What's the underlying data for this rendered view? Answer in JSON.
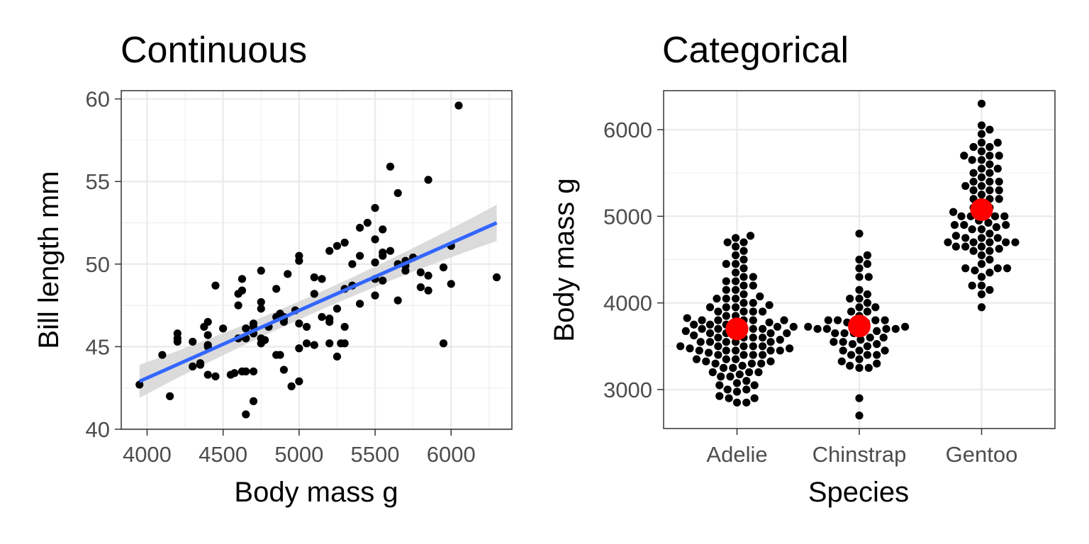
{
  "chart_data": [
    {
      "type": "scatter",
      "title": "Continuous",
      "xlabel": "Body mass g",
      "ylabel": "Bill length mm",
      "xlim": [
        3830,
        6400
      ],
      "ylim": [
        40,
        60.5
      ],
      "xticks": [
        "4000",
        "4500",
        "5000",
        "5500",
        "6000"
      ],
      "yticks": [
        "40",
        "45",
        "50",
        "55",
        "60"
      ],
      "grid": true,
      "legend": "none",
      "colors": {
        "points": "#000000",
        "trend": "#3366FF",
        "ribbon": "#d9d9d9"
      },
      "trend_line": {
        "x": [
          3950,
          6300
        ],
        "y": [
          42.9,
          52.5
        ],
        "ribbon_halfwidth": [
          1.0,
          0.55,
          1.1
        ]
      },
      "series": [
        {
          "x": [
            3950,
            4100,
            4150,
            4200,
            4200,
            4200,
            4300,
            4300,
            4350,
            4350,
            4375,
            4400,
            4400,
            4400,
            4400,
            4400,
            4450,
            4450,
            4500,
            4550,
            4575,
            4600,
            4600,
            4600,
            4625,
            4625,
            4625,
            4650,
            4650,
            4650,
            4650,
            4700,
            4700,
            4700,
            4700,
            4700,
            4750,
            4750,
            4750,
            4750,
            4750,
            4775,
            4800,
            4850,
            4850,
            4850,
            4875,
            4875,
            4900,
            4900,
            4900,
            4900,
            4925,
            4950,
            4975,
            5000,
            5000,
            5000,
            5000,
            5000,
            5050,
            5050,
            5100,
            5100,
            5100,
            5150,
            5150,
            5200,
            5200,
            5200,
            5200,
            5250,
            5250,
            5250,
            5275,
            5300,
            5300,
            5300,
            5300,
            5350,
            5350,
            5400,
            5400,
            5400,
            5450,
            5500,
            5500,
            5500,
            5500,
            5500,
            5550,
            5550,
            5550,
            5550,
            5600,
            5600,
            5650,
            5650,
            5650,
            5700,
            5700,
            5700,
            5750,
            5800,
            5800,
            5850,
            5850,
            5850,
            5950,
            5950,
            6000,
            6000,
            6050,
            6300
          ],
          "y": [
            42.7,
            44.5,
            42.0,
            45.8,
            45.5,
            45.3,
            45.3,
            43.8,
            44.0,
            43.9,
            46.2,
            46.5,
            45.7,
            45.1,
            45.0,
            43.3,
            48.7,
            43.2,
            46.1,
            43.3,
            43.4,
            48.2,
            47.5,
            45.5,
            48.4,
            49.1,
            43.5,
            46.1,
            45.5,
            40.9,
            43.5,
            46.4,
            46.2,
            45.8,
            43.5,
            41.7,
            49.6,
            47.7,
            47.3,
            45.5,
            45.2,
            45.4,
            46.2,
            48.5,
            46.8,
            44.5,
            47.0,
            44.5,
            46.8,
            46.5,
            46.7,
            43.6,
            49.4,
            42.6,
            47.2,
            50.5,
            50.2,
            46.4,
            44.9,
            42.9,
            45.2,
            46.2,
            49.2,
            48.2,
            45.1,
            49.1,
            46.8,
            50.8,
            46.5,
            46.7,
            45.2,
            51.1,
            47.3,
            44.4,
            45.2,
            51.3,
            48.5,
            46.2,
            45.2,
            48.7,
            50.0,
            52.2,
            50.5,
            47.6,
            52.5,
            53.4,
            51.5,
            50.1,
            49.1,
            48.1,
            52.1,
            50.7,
            50.5,
            49.0,
            55.9,
            50.8,
            54.3,
            50.0,
            47.8,
            50.2,
            49.9,
            49.6,
            50.4,
            49.5,
            48.6,
            55.1,
            49.3,
            48.4,
            49.8,
            45.2,
            51.1,
            48.8,
            59.6,
            49.2
          ]
        }
      ]
    },
    {
      "type": "scatter",
      "title": "Categorical",
      "xlabel": "Species",
      "ylabel": "Body mass g",
      "ylim": [
        2550,
        6450
      ],
      "categories": [
        "Adelie",
        "Chinstrap",
        "Gentoo"
      ],
      "yticks": [
        "3000",
        "4000",
        "5000",
        "6000"
      ],
      "grid": true,
      "legend": "none",
      "colors": {
        "points": "#000000",
        "means": "#ff0000"
      },
      "means": [
        3700,
        3733,
        5076
      ],
      "series": [
        {
          "name": "Adelie",
          "values": [
            2850,
            2850,
            2900,
            2900,
            2925,
            2975,
            3000,
            3000,
            3050,
            3050,
            3075,
            3100,
            3150,
            3150,
            3175,
            3200,
            3200,
            3200,
            3250,
            3250,
            3275,
            3300,
            3300,
            3300,
            3325,
            3325,
            3350,
            3350,
            3350,
            3400,
            3400,
            3400,
            3400,
            3425,
            3450,
            3450,
            3450,
            3450,
            3450,
            3475,
            3475,
            3500,
            3500,
            3500,
            3500,
            3500,
            3550,
            3550,
            3550,
            3550,
            3550,
            3575,
            3600,
            3600,
            3600,
            3600,
            3625,
            3650,
            3650,
            3650,
            3650,
            3650,
            3675,
            3700,
            3700,
            3700,
            3700,
            3700,
            3725,
            3725,
            3750,
            3750,
            3750,
            3750,
            3775,
            3800,
            3800,
            3800,
            3800,
            3800,
            3825,
            3850,
            3850,
            3900,
            3900,
            3900,
            3900,
            3950,
            3950,
            3950,
            3975,
            4000,
            4000,
            4050,
            4050,
            4050,
            4075,
            4100,
            4150,
            4150,
            4200,
            4200,
            4250,
            4250,
            4300,
            4300,
            4350,
            4400,
            4450,
            4450,
            4500,
            4550,
            4600,
            4650,
            4700,
            4700,
            4750,
            4775
          ]
        },
        {
          "name": "Chinstrap",
          "values": [
            2700,
            2900,
            3250,
            3250,
            3275,
            3300,
            3325,
            3350,
            3400,
            3400,
            3400,
            3450,
            3450,
            3450,
            3500,
            3525,
            3525,
            3550,
            3550,
            3575,
            3600,
            3600,
            3650,
            3650,
            3650,
            3675,
            3675,
            3700,
            3700,
            3700,
            3700,
            3725,
            3725,
            3750,
            3775,
            3775,
            3800,
            3800,
            3800,
            3800,
            3850,
            3900,
            3900,
            3950,
            3950,
            4000,
            4050,
            4050,
            4100,
            4150,
            4300,
            4300,
            4400,
            4450,
            4500,
            4550,
            4800
          ]
        },
        {
          "name": "Gentoo",
          "values": [
            3950,
            4100,
            4150,
            4200,
            4200,
            4300,
            4350,
            4375,
            4400,
            4400,
            4400,
            4450,
            4500,
            4550,
            4600,
            4600,
            4625,
            4650,
            4650,
            4650,
            4700,
            4700,
            4700,
            4700,
            4700,
            4750,
            4750,
            4750,
            4775,
            4800,
            4850,
            4850,
            4875,
            4900,
            4900,
            4900,
            4925,
            4950,
            5000,
            5000,
            5000,
            5000,
            5050,
            5050,
            5100,
            5100,
            5150,
            5200,
            5200,
            5200,
            5250,
            5300,
            5300,
            5300,
            5350,
            5350,
            5400,
            5400,
            5400,
            5450,
            5500,
            5500,
            5550,
            5550,
            5600,
            5650,
            5650,
            5700,
            5700,
            5700,
            5750,
            5800,
            5800,
            5850,
            5850,
            5950,
            6000,
            6050,
            6300
          ]
        }
      ]
    }
  ]
}
